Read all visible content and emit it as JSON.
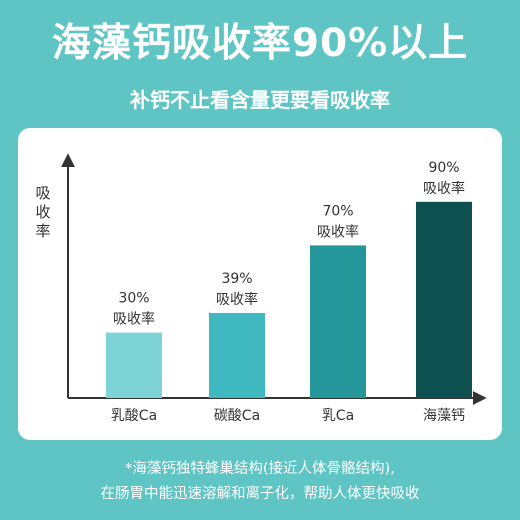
{
  "header": {
    "title": "海藻钙吸收率90%以上",
    "subtitle": "补钙不止看含量更要看吸收率"
  },
  "footnote": {
    "line1": "*海藻钙独特蜂巢结构(接近人体骨骼结构),",
    "line2": "在肠胃中能迅速溶解和离子化，帮助人体更快吸收"
  },
  "colors": {
    "background": "#5ec4c4",
    "card": "#ffffff",
    "axis": "#333333",
    "text": "#333333"
  },
  "chart_data": {
    "type": "bar",
    "title": "",
    "xlabel": "",
    "ylabel": "吸收率",
    "ylim": [
      0,
      100
    ],
    "grid": false,
    "categories": [
      "乳酸Ca",
      "碳酸Ca",
      "乳Ca",
      "海藻钙"
    ],
    "values": [
      30,
      39,
      70,
      90
    ],
    "value_labels": [
      "30%",
      "39%",
      "70%",
      "90%"
    ],
    "bar_caption": "吸收率",
    "bar_colors": [
      "#7dd3d5",
      "#3fb8bf",
      "#25979a",
      "#0e4f50"
    ]
  }
}
